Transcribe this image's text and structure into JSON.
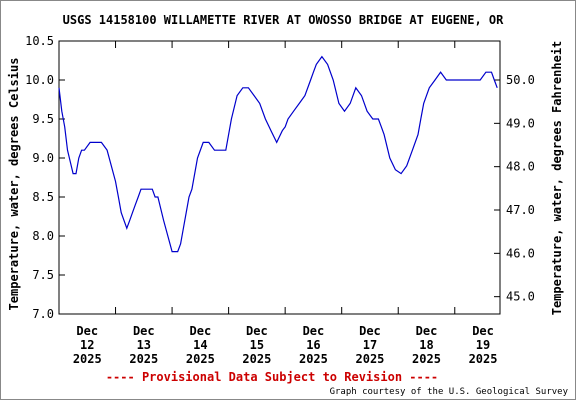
{
  "chart_data": {
    "type": "line",
    "title": "USGS 14158100 WILLAMETTE RIVER AT OWOSSO BRIDGE AT EUGENE, OR",
    "ylabel": "Temperature, water, degrees Celsius",
    "ylabel_right": "Temperature, water, degrees Fahrenheit",
    "ylim": [
      7.0,
      10.5
    ],
    "yticks": [
      "7.0",
      "7.5",
      "8.0",
      "8.5",
      "9.0",
      "9.5",
      "10.0",
      "10.5"
    ],
    "ylim_right": [
      44.6,
      50.9
    ],
    "yticks_right": [
      "45.0",
      "46.0",
      "47.0",
      "48.0",
      "49.0",
      "50.0"
    ],
    "xlim": [
      0,
      7.8
    ],
    "x_tick_labels": [
      {
        "x": 0.5,
        "month": "Dec",
        "day": "12",
        "year": "2025"
      },
      {
        "x": 1.5,
        "month": "Dec",
        "day": "13",
        "year": "2025"
      },
      {
        "x": 2.5,
        "month": "Dec",
        "day": "14",
        "year": "2025"
      },
      {
        "x": 3.5,
        "month": "Dec",
        "day": "15",
        "year": "2025"
      },
      {
        "x": 4.5,
        "month": "Dec",
        "day": "16",
        "year": "2025"
      },
      {
        "x": 5.5,
        "month": "Dec",
        "day": "17",
        "year": "2025"
      },
      {
        "x": 6.5,
        "month": "Dec",
        "day": "18",
        "year": "2025"
      },
      {
        "x": 7.5,
        "month": "Dec",
        "day": "19",
        "year": "2025"
      }
    ],
    "grid": false,
    "line_color": "#0000cc",
    "series": [
      {
        "x": [
          0.0,
          0.05,
          0.1,
          0.15,
          0.2,
          0.25,
          0.3,
          0.35,
          0.4,
          0.45,
          0.55,
          0.65,
          0.75,
          0.85,
          1.0,
          1.05,
          1.1,
          1.15,
          1.2,
          1.25,
          1.3,
          1.35,
          1.4,
          1.45,
          1.55,
          1.65,
          1.7,
          1.75,
          1.85,
          2.0,
          2.05,
          2.1,
          2.15,
          2.2,
          2.25,
          2.3,
          2.35,
          2.45,
          2.55,
          2.65,
          2.75,
          2.85,
          2.95,
          3.05,
          3.15,
          3.25,
          3.35,
          3.45,
          3.55,
          3.65,
          3.75,
          3.85,
          3.95,
          4.0,
          4.05,
          4.15,
          4.25,
          4.35,
          4.45,
          4.5,
          4.55,
          4.65,
          4.75,
          4.85,
          4.95,
          5.05,
          5.15,
          5.25,
          5.35,
          5.45,
          5.55,
          5.65,
          5.7,
          5.75,
          5.85,
          5.95,
          6.05,
          6.15,
          6.25,
          6.35,
          6.4,
          6.45,
          6.5,
          6.55,
          6.65,
          6.75,
          6.85,
          6.95,
          7.05,
          7.1,
          7.15,
          7.25,
          7.35,
          7.45,
          7.55,
          7.65,
          7.7,
          7.75
        ],
        "values": [
          9.9,
          9.6,
          9.4,
          9.1,
          8.95,
          8.8,
          8.8,
          9.0,
          9.1,
          9.1,
          9.2,
          9.2,
          9.2,
          9.1,
          8.7,
          8.5,
          8.3,
          8.2,
          8.1,
          8.2,
          8.3,
          8.4,
          8.5,
          8.6,
          8.6,
          8.6,
          8.5,
          8.5,
          8.2,
          7.8,
          7.8,
          7.8,
          7.9,
          8.1,
          8.3,
          8.5,
          8.6,
          9.0,
          9.2,
          9.2,
          9.1,
          9.1,
          9.1,
          9.5,
          9.8,
          9.9,
          9.9,
          9.8,
          9.7,
          9.5,
          9.35,
          9.2,
          9.35,
          9.4,
          9.5,
          9.6,
          9.7,
          9.8,
          10.0,
          10.1,
          10.2,
          10.3,
          10.2,
          10.0,
          9.7,
          9.6,
          9.7,
          9.9,
          9.8,
          9.6,
          9.5,
          9.5,
          9.4,
          9.3,
          9.0,
          8.85,
          8.8,
          8.9,
          9.1,
          9.3,
          9.5,
          9.7,
          9.8,
          9.9,
          10.0,
          10.1,
          10.0,
          10.0,
          10.0,
          10.0,
          10.0,
          10.0,
          10.0,
          10.0,
          10.1,
          10.1,
          10.0,
          9.9
        ]
      }
    ]
  },
  "footer": {
    "provisional_text": "---- Provisional Data Subject to Revision ----",
    "courtesy_text": "Graph courtesy of the U.S. Geological Survey"
  },
  "colors": {
    "provisional": "#cc0000",
    "axis": "#000000"
  }
}
